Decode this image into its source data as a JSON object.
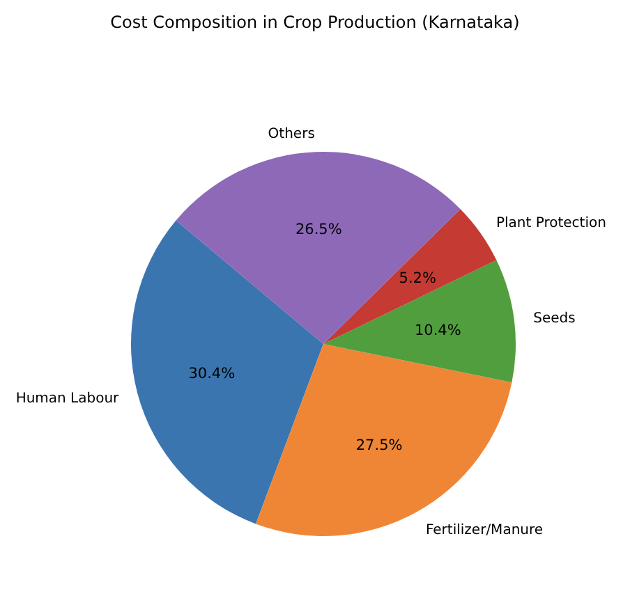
{
  "chart_data": {
    "type": "pie",
    "title": "Cost Composition in Crop Production (Karnataka)",
    "categories": [
      "Human Labour",
      "Fertilizer/Manure",
      "Seeds",
      "Plant Protection",
      "Others"
    ],
    "values": [
      30.4,
      27.5,
      10.4,
      5.2,
      26.5
    ],
    "value_labels": [
      "30.4%",
      "27.5%",
      "10.4%",
      "5.2%",
      "26.5%"
    ],
    "colors": [
      "#3a75b0",
      "#ef8636",
      "#519e3e",
      "#c53a32",
      "#8d69b8"
    ]
  }
}
